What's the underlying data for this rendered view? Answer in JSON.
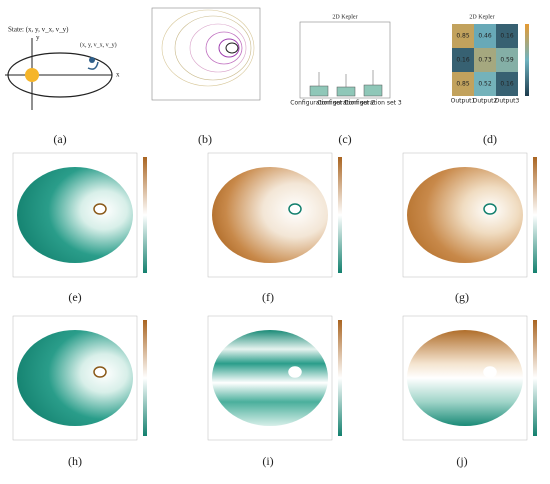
{
  "panels": [
    "(a)",
    "(b)",
    "(c)",
    "(d)",
    "(e)",
    "(f)",
    "(g)",
    "(h)",
    "(i)",
    "(j)"
  ],
  "diagram_a": {
    "state": "State: (x, y, v_x, v_y)",
    "state_near_body": "(x, y, v_x, v_y)",
    "x_axis": "x",
    "y_axis": "y"
  },
  "panel_c": {
    "title": "2D Kepler",
    "categories": [
      "Configuration set 1",
      "Configuration set 2",
      "Configuration set 3"
    ]
  },
  "panel_d": {
    "title": "2D Kepler",
    "columns": [
      "Output1",
      "Output2",
      "Output3"
    ],
    "cells": [
      [
        0.85,
        0.46,
        0.16
      ],
      [
        0.16,
        0.73,
        0.59
      ],
      [
        0.85,
        0.52,
        0.16
      ]
    ]
  }
}
